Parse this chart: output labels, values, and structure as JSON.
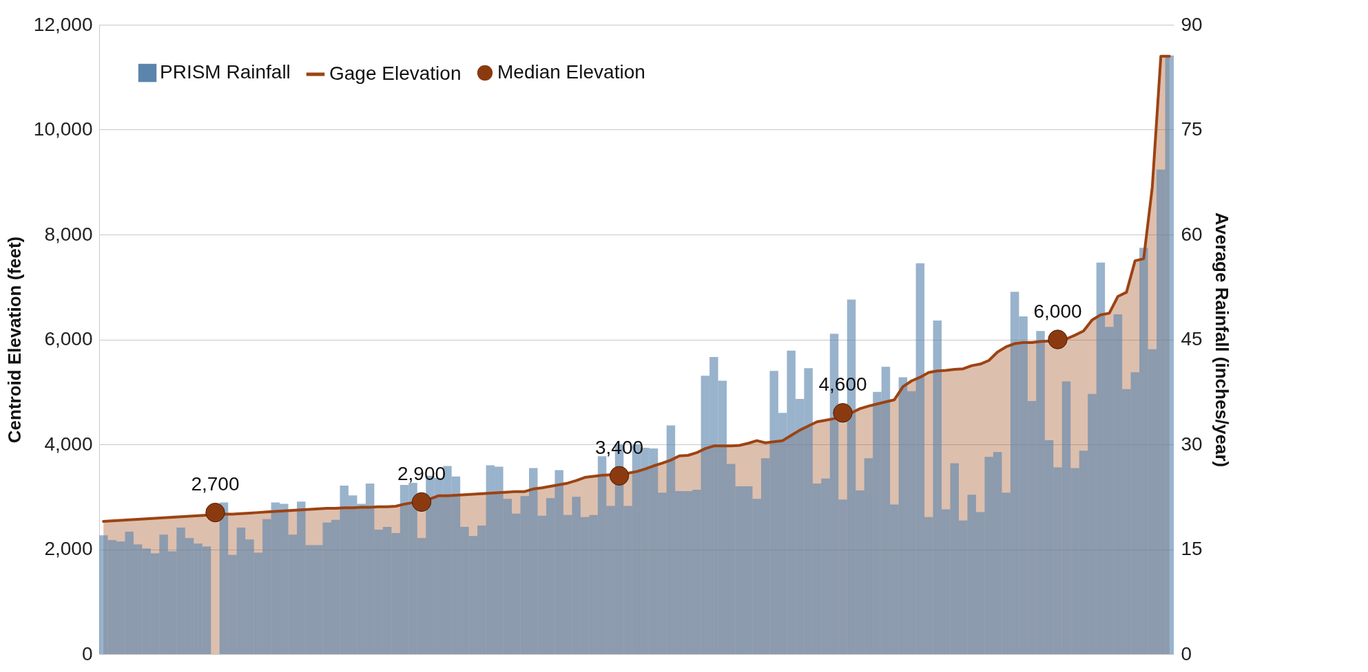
{
  "chart_data": {
    "type": "bar",
    "ylabel": "Centroid Elevation (feet)",
    "y2label": "Average Rainfall (inches/year)",
    "categories": [
      null,
      null,
      null,
      null,
      null,
      null,
      null,
      null,
      null,
      null,
      null,
      null,
      null,
      null,
      null,
      null,
      null,
      null,
      null,
      null,
      null,
      null,
      null,
      null,
      null,
      null,
      null,
      null,
      null,
      null,
      null,
      null,
      null,
      null,
      null,
      null,
      null,
      null,
      null,
      null,
      null,
      null,
      null,
      null,
      null,
      null,
      null,
      null,
      null,
      null,
      null,
      null,
      null,
      null,
      null,
      null,
      null,
      null,
      null,
      null,
      null,
      null,
      null,
      null,
      null,
      null,
      null,
      null,
      null,
      null,
      null,
      null,
      null,
      null,
      null,
      null,
      null,
      null,
      null,
      null,
      null,
      null,
      null,
      null,
      null,
      null,
      null,
      null,
      null,
      null,
      null,
      null,
      null,
      null,
      null,
      null,
      null,
      null,
      null,
      null,
      null,
      null,
      null,
      null,
      null,
      null,
      null,
      null,
      null,
      null,
      null,
      null,
      null,
      null,
      null,
      null,
      null,
      null,
      null,
      null,
      null,
      null,
      null,
      null,
      null
    ],
    "series": [
      {
        "name": "PRISM Rainfall",
        "color": "#5b85ad",
        "axis": "y2",
        "values": [
          17.0,
          16.3,
          16.1,
          17.5,
          15.7,
          15.1,
          14.4,
          17.1,
          14.7,
          18.1,
          16.6,
          15.8,
          15.4,
          null,
          21.7,
          14.2,
          18.1,
          16.4,
          14.5,
          19.3,
          21.7,
          21.5,
          17.1,
          21.8,
          15.6,
          15.6,
          18.8,
          19.2,
          24.1,
          22.7,
          21.5,
          24.4,
          17.8,
          18.2,
          17.3,
          24.2,
          24.5,
          16.6,
          25.5,
          25.2,
          26.9,
          25.4,
          18.2,
          16.9,
          18.4,
          27.0,
          26.8,
          22.2,
          20.1,
          22.6,
          26.6,
          19.8,
          22.3,
          26.3,
          19.9,
          22.5,
          19.6,
          19.9,
          28.3,
          21.2,
          30.0,
          21.2,
          30.0,
          29.5,
          29.4,
          23.1,
          32.7,
          23.3,
          23.3,
          23.5,
          39.8,
          42.5,
          39.1,
          27.2,
          24.0,
          24.0,
          22.2,
          28.0,
          40.5,
          34.5,
          43.4,
          36.5,
          40.9,
          24.4,
          25.1,
          45.8,
          22.1,
          50.7,
          23.4,
          28.0,
          37.5,
          41.1,
          21.4,
          39.6,
          37.6,
          55.9,
          19.6,
          47.7,
          20.7,
          27.3,
          19.1,
          22.8,
          20.3,
          28.2,
          28.9,
          23.1,
          51.8,
          48.3,
          36.2,
          46.2,
          30.6,
          26.7,
          39.0,
          26.6,
          29.1,
          37.2,
          56.0,
          46.8,
          48.6,
          37.9,
          40.3,
          58.1,
          43.6,
          69.3,
          85.6
        ]
      },
      {
        "type": "area",
        "name": "Gage Elevation",
        "color": "#9c4313",
        "values": [
          2530,
          2540,
          2550,
          2560,
          2570,
          2580,
          2590,
          2600,
          2610,
          2620,
          2630,
          2640,
          2650,
          2660,
          2670,
          2670,
          2680,
          2690,
          2700,
          2710,
          2720,
          2730,
          2740,
          2750,
          2760,
          2770,
          2780,
          2780,
          2790,
          2790,
          2800,
          2800,
          2810,
          2810,
          2820,
          2860,
          2890,
          2900,
          2960,
          3020,
          3020,
          3030,
          3040,
          3050,
          3060,
          3070,
          3080,
          3090,
          3100,
          3100,
          3150,
          3170,
          3200,
          3230,
          3260,
          3310,
          3370,
          3390,
          3410,
          3420,
          3420,
          3450,
          3480,
          3530,
          3590,
          3640,
          3700,
          3780,
          3790,
          3840,
          3920,
          3970,
          3970,
          3970,
          3980,
          4020,
          4070,
          4030,
          4050,
          4070,
          4170,
          4270,
          4350,
          4430,
          4460,
          4490,
          4540,
          4600,
          4680,
          4730,
          4770,
          4810,
          4850,
          5100,
          5210,
          5280,
          5370,
          5400,
          5410,
          5430,
          5440,
          5500,
          5530,
          5600,
          5760,
          5860,
          5920,
          5940,
          5940,
          5960,
          5970,
          5980,
          6010,
          6080,
          6160,
          6370,
          6470,
          6500,
          6820,
          6900,
          7500,
          7540,
          8900,
          11400,
          11400
        ]
      },
      {
        "type": "scatter",
        "name": "Median Elevation",
        "color": "#8b3a0f",
        "marker": "circle",
        "values": [
          null,
          null,
          null,
          null,
          null,
          null,
          null,
          null,
          null,
          null,
          null,
          null,
          null,
          2700,
          null,
          null,
          null,
          null,
          null,
          null,
          null,
          null,
          null,
          null,
          null,
          null,
          null,
          null,
          null,
          null,
          null,
          null,
          null,
          null,
          null,
          null,
          null,
          2900,
          null,
          null,
          null,
          null,
          null,
          null,
          null,
          null,
          null,
          null,
          null,
          null,
          null,
          null,
          null,
          null,
          null,
          null,
          null,
          null,
          null,
          null,
          3400,
          null,
          null,
          null,
          null,
          null,
          null,
          null,
          null,
          null,
          null,
          null,
          null,
          null,
          null,
          null,
          null,
          null,
          null,
          null,
          null,
          null,
          null,
          null,
          null,
          null,
          4600,
          null,
          null,
          null,
          null,
          null,
          null,
          null,
          null,
          null,
          null,
          null,
          null,
          null,
          null,
          null,
          null,
          null,
          null,
          null,
          null,
          null,
          null,
          null,
          null,
          6000,
          null,
          null,
          null,
          null,
          null,
          null,
          null,
          null,
          null,
          null,
          null,
          null,
          null
        ],
        "value_labels": [
          null,
          null,
          null,
          null,
          null,
          null,
          null,
          null,
          null,
          null,
          null,
          null,
          null,
          "2,700",
          null,
          null,
          null,
          null,
          null,
          null,
          null,
          null,
          null,
          null,
          null,
          null,
          null,
          null,
          null,
          null,
          null,
          null,
          null,
          null,
          null,
          null,
          null,
          "2,900",
          null,
          null,
          null,
          null,
          null,
          null,
          null,
          null,
          null,
          null,
          null,
          null,
          null,
          null,
          null,
          null,
          null,
          null,
          null,
          null,
          null,
          null,
          "3,400",
          null,
          null,
          null,
          null,
          null,
          null,
          null,
          null,
          null,
          null,
          null,
          null,
          null,
          null,
          null,
          null,
          null,
          null,
          null,
          null,
          null,
          null,
          null,
          null,
          null,
          "4,600",
          null,
          null,
          null,
          null,
          null,
          null,
          null,
          null,
          null,
          null,
          null,
          null,
          null,
          null,
          null,
          null,
          null,
          null,
          null,
          null,
          null,
          null,
          null,
          null,
          "6,000",
          null,
          null,
          null,
          null,
          null,
          null,
          null,
          null,
          null,
          null,
          null,
          null,
          null
        ]
      }
    ],
    "ylim": [
      0,
      12000
    ],
    "yticks": [
      0,
      {
        "value": 2000,
        "label": "2,000"
      },
      {
        "value": 4000,
        "label": "4,000"
      },
      {
        "value": 6000,
        "label": "6,000"
      },
      {
        "value": 8000,
        "label": "8,000"
      },
      {
        "value": 10000,
        "label": "10,000"
      },
      {
        "value": 12000,
        "label": "12,000"
      }
    ],
    "y2lim": [
      0,
      90
    ],
    "y2ticks": [
      0,
      15,
      30,
      45,
      60,
      75,
      90
    ],
    "grid": true,
    "legend": "top left",
    "tick_labels": "y"
  }
}
